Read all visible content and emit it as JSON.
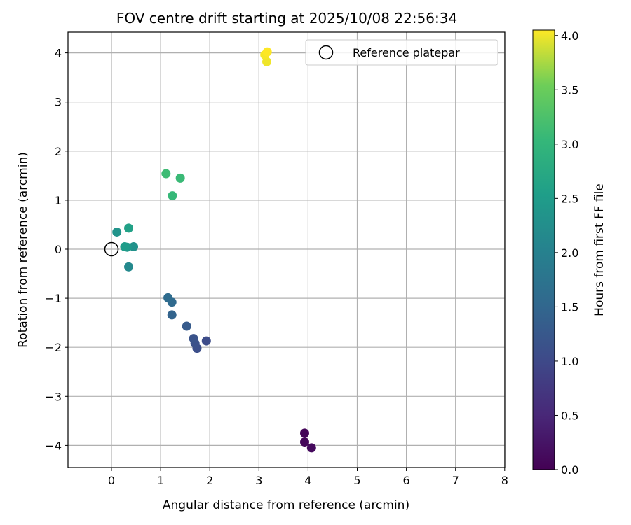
{
  "chart_data": {
    "type": "scatter",
    "title": "FOV centre drift starting at 2025/10/08 22:56:34",
    "xlabel": "Angular distance from reference (arcmin)",
    "ylabel": "Rotation from reference (arcmin)",
    "xlim": [
      -0.85,
      8
    ],
    "ylim": [
      -4.45,
      4.42
    ],
    "xticks": [
      0,
      1,
      2,
      3,
      4,
      5,
      6,
      7,
      8
    ],
    "yticks": [
      -4,
      -3,
      -2,
      -1,
      0,
      1,
      2,
      3,
      4
    ],
    "grid": true,
    "legend": {
      "position": "top-right",
      "entries": [
        "Reference platepar"
      ]
    },
    "reference_point": {
      "x": 0,
      "y": 0,
      "label": "Reference platepar"
    },
    "colorbar": {
      "label": "Hours from first FF file",
      "colormap": "viridis",
      "range": [
        0,
        4.05
      ],
      "ticks": [
        "0.0",
        "0.5",
        "1.0",
        "1.5",
        "2.0",
        "2.5",
        "3.0",
        "3.5",
        "4.0"
      ]
    },
    "series": [
      {
        "name": "FOV centre",
        "points": [
          {
            "x": 3.93,
            "y": -3.75,
            "hours": 0.05
          },
          {
            "x": 3.93,
            "y": -3.93,
            "hours": 0.08
          },
          {
            "x": 4.07,
            "y": -4.05,
            "hours": 0.12
          },
          {
            "x": 1.93,
            "y": -1.87,
            "hours": 1.05
          },
          {
            "x": 1.74,
            "y": -2.02,
            "hours": 1.1
          },
          {
            "x": 1.7,
            "y": -1.92,
            "hours": 1.13
          },
          {
            "x": 1.67,
            "y": -1.82,
            "hours": 1.16
          },
          {
            "x": 1.53,
            "y": -1.57,
            "hours": 1.3
          },
          {
            "x": 1.23,
            "y": -1.34,
            "hours": 1.45
          },
          {
            "x": 1.23,
            "y": -1.08,
            "hours": 1.55
          },
          {
            "x": 1.15,
            "y": -0.99,
            "hours": 1.6
          },
          {
            "x": 0.35,
            "y": -0.36,
            "hours": 2.15
          },
          {
            "x": 0.45,
            "y": 0.05,
            "hours": 2.3
          },
          {
            "x": 0.32,
            "y": 0.04,
            "hours": 2.42
          },
          {
            "x": 0.27,
            "y": 0.05,
            "hours": 2.5
          },
          {
            "x": 0.11,
            "y": 0.35,
            "hours": 2.35
          },
          {
            "x": 0.35,
            "y": 0.43,
            "hours": 2.6
          },
          {
            "x": 1.24,
            "y": 1.09,
            "hours": 3.05
          },
          {
            "x": 1.4,
            "y": 1.45,
            "hours": 3.08
          },
          {
            "x": 1.11,
            "y": 1.54,
            "hours": 3.12
          },
          {
            "x": 3.16,
            "y": 3.82,
            "hours": 4.0
          },
          {
            "x": 3.12,
            "y": 3.96,
            "hours": 4.02
          },
          {
            "x": 3.17,
            "y": 4.02,
            "hours": 4.05
          }
        ]
      }
    ]
  }
}
